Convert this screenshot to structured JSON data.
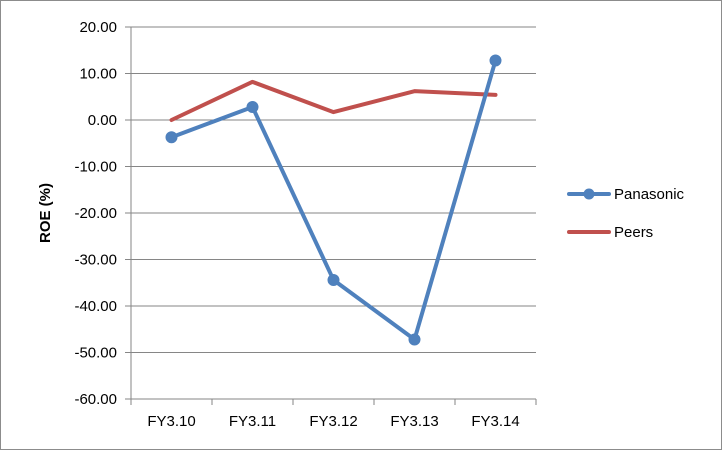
{
  "chart_data": {
    "type": "line",
    "title": "",
    "xlabel": "",
    "ylabel": "ROE (%)",
    "categories": [
      "FY3.10",
      "FY3.11",
      "FY3.12",
      "FY3.13",
      "FY3.14"
    ],
    "ylim": [
      -60,
      20
    ],
    "yticks": [
      "20.00",
      "10.00",
      "0.00",
      "-10.00",
      "-20.00",
      "-30.00",
      "-40.00",
      "-50.00",
      "-60.00"
    ],
    "grid": true,
    "legend_position": "right",
    "series": [
      {
        "name": "Panasonic",
        "color": "#4f81bd",
        "marker": "circle",
        "values": [
          -3.7,
          2.8,
          -34.4,
          -47.2,
          12.8
        ]
      },
      {
        "name": "Peers",
        "color": "#c0504d",
        "marker": "none",
        "values": [
          0.0,
          8.2,
          1.7,
          6.2,
          5.4
        ]
      }
    ]
  }
}
